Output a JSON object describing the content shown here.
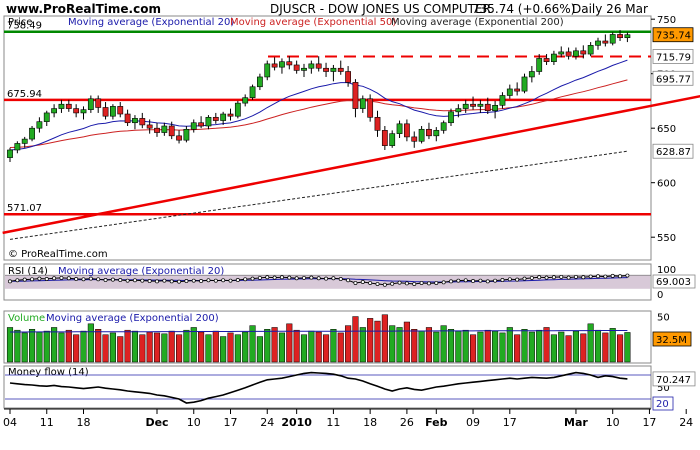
{
  "header": {
    "site": "www.ProRealTime.com",
    "title": "DJUSCR - DOW JONES US COMPUTER",
    "price_change": "735.74 (+0.66%)",
    "period": "Daily  26 Mar"
  },
  "watermark": "© ProRealTime.com",
  "colors": {
    "background": "#ffffff",
    "up": "#22aa22",
    "down": "#dd2222",
    "resistance": "#008800",
    "support": "#ee0000",
    "ema20": "#1a1aaa",
    "ema50": "#cc2222",
    "ema200": "#222222",
    "volume_ma": "#1a1aaa",
    "rsi_fill": "#d8c9d8",
    "panel_border": "#888888"
  },
  "chart_data": [
    {
      "type": "candlestick",
      "panel": "price",
      "legend": [
        {
          "label": "Price",
          "color": "#000000"
        },
        {
          "label": "Moving average (Exponential 20)",
          "color": "#1a1aaa"
        },
        {
          "label": "Moving average (Exponential 50)",
          "color": "#cc2222"
        },
        {
          "label": "Moving average (Exponential 200)",
          "color": "#222222"
        }
      ],
      "ylim": [
        530,
        752
      ],
      "y_ticks": [
        550,
        600,
        650,
        700,
        750
      ],
      "x_labels": [
        "04",
        "11",
        "18",
        "Dec",
        "10",
        "17",
        "24",
        "2010",
        "11",
        "18",
        "26",
        "Feb",
        "09",
        "17",
        "Mar",
        "10",
        "17",
        "24"
      ],
      "x_label_days": [
        0,
        5,
        10,
        20,
        25,
        30,
        35,
        39,
        44,
        49,
        54,
        58,
        63,
        68,
        77,
        82,
        87,
        92
      ],
      "x_bold_labels": [
        "Dec",
        "2010",
        "Feb",
        "Mar"
      ],
      "horizontal_lines": [
        {
          "value": 738.49,
          "label": "738.49",
          "style": "solid",
          "color": "#008800"
        },
        {
          "value": 715.79,
          "label": "715.79",
          "style": "dashed",
          "color": "#ee0000"
        },
        {
          "value": 675.94,
          "label": "675.94",
          "style": "solid",
          "color": "#ee0000"
        },
        {
          "value": 571.07,
          "label": "571.07",
          "style": "solid",
          "color": "#ee0000"
        }
      ],
      "trendline": {
        "from": [
          -1,
          554
        ],
        "to": [
          102,
          690
        ],
        "color": "#ee0000"
      },
      "right_labels": [
        {
          "value": 735.74,
          "text": "735.74",
          "box": "#ff9900"
        },
        {
          "value": 715.79,
          "text": "715.79",
          "box": "#ffffff"
        },
        {
          "value": 695.77,
          "text": "695.77",
          "box": "#ffffff"
        },
        {
          "value": 628.87,
          "text": "628.87",
          "box": "#ffffff"
        }
      ],
      "candles": [
        [
          623,
          632,
          619,
          630
        ],
        [
          630,
          638,
          627,
          636
        ],
        [
          636,
          642,
          632,
          640
        ],
        [
          640,
          652,
          638,
          650
        ],
        [
          650,
          660,
          646,
          656
        ],
        [
          656,
          666,
          652,
          664
        ],
        [
          664,
          672,
          660,
          668
        ],
        [
          668,
          676,
          664,
          672
        ],
        [
          672,
          676,
          665,
          668
        ],
        [
          668,
          672,
          660,
          664
        ],
        [
          664,
          670,
          658,
          667
        ],
        [
          667,
          680,
          664,
          677
        ],
        [
          677,
          680,
          664,
          669
        ],
        [
          669,
          674,
          658,
          661
        ],
        [
          661,
          672,
          658,
          670
        ],
        [
          670,
          674,
          660,
          663
        ],
        [
          663,
          667,
          652,
          655
        ],
        [
          655,
          662,
          649,
          659
        ],
        [
          659,
          664,
          650,
          653
        ],
        [
          653,
          658,
          645,
          650
        ],
        [
          650,
          655,
          642,
          646
        ],
        [
          646,
          655,
          643,
          652
        ],
        [
          652,
          656,
          640,
          643
        ],
        [
          643,
          648,
          636,
          639
        ],
        [
          639,
          652,
          637,
          649
        ],
        [
          649,
          658,
          646,
          655
        ],
        [
          655,
          661,
          650,
          652
        ],
        [
          652,
          662,
          649,
          660
        ],
        [
          660,
          664,
          654,
          657
        ],
        [
          657,
          665,
          653,
          663
        ],
        [
          663,
          668,
          657,
          661
        ],
        [
          661,
          675,
          659,
          673
        ],
        [
          673,
          681,
          670,
          678
        ],
        [
          678,
          690,
          676,
          688
        ],
        [
          688,
          700,
          685,
          697
        ],
        [
          697,
          712,
          694,
          709
        ],
        [
          709,
          715,
          703,
          706
        ],
        [
          706,
          714,
          700,
          711
        ],
        [
          711,
          716,
          704,
          708
        ],
        [
          708,
          712,
          700,
          703
        ],
        [
          703,
          709,
          697,
          705
        ],
        [
          705,
          712,
          700,
          709
        ],
        [
          709,
          716,
          702,
          705
        ],
        [
          705,
          710,
          697,
          702
        ],
        [
          702,
          708,
          693,
          705
        ],
        [
          705,
          712,
          699,
          702
        ],
        [
          702,
          707,
          688,
          692
        ],
        [
          692,
          695,
          660,
          668
        ],
        [
          668,
          680,
          664,
          677
        ],
        [
          677,
          681,
          656,
          660
        ],
        [
          660,
          666,
          642,
          648
        ],
        [
          648,
          652,
          630,
          634
        ],
        [
          634,
          648,
          632,
          645
        ],
        [
          645,
          657,
          641,
          654
        ],
        [
          654,
          658,
          638,
          642
        ],
        [
          642,
          647,
          632,
          638
        ],
        [
          638,
          652,
          636,
          649
        ],
        [
          649,
          655,
          640,
          643
        ],
        [
          643,
          651,
          638,
          648
        ],
        [
          648,
          657,
          645,
          655
        ],
        [
          655,
          668,
          652,
          665
        ],
        [
          665,
          672,
          660,
          668
        ],
        [
          668,
          676,
          664,
          672
        ],
        [
          672,
          679,
          667,
          670
        ],
        [
          670,
          676,
          664,
          672
        ],
        [
          672,
          678,
          663,
          666
        ],
        [
          666,
          675,
          659,
          671
        ],
        [
          671,
          683,
          668,
          680
        ],
        [
          680,
          690,
          677,
          686
        ],
        [
          686,
          692,
          680,
          684
        ],
        [
          684,
          700,
          682,
          697
        ],
        [
          697,
          707,
          692,
          702
        ],
        [
          702,
          718,
          699,
          714
        ],
        [
          714,
          718,
          708,
          711
        ],
        [
          711,
          721,
          708,
          718
        ],
        [
          718,
          725,
          715,
          720
        ],
        [
          720,
          724,
          713,
          716
        ],
        [
          716,
          724,
          713,
          721
        ],
        [
          721,
          726,
          714,
          718
        ],
        [
          718,
          729,
          716,
          726
        ],
        [
          726,
          733,
          722,
          730
        ],
        [
          730,
          736,
          725,
          728
        ],
        [
          728,
          738,
          726,
          736
        ],
        [
          736,
          740,
          730,
          733
        ],
        [
          733,
          738,
          729,
          735.74
        ]
      ],
      "ema20_end": 715.79,
      "ema50_end": 695.77,
      "ema200_end": 628.87
    },
    {
      "type": "line",
      "panel": "rsi",
      "legend": [
        {
          "label": "RSI (14)",
          "color": "#000000"
        },
        {
          "label": "Moving average (Exponential 20)",
          "color": "#1a1aaa"
        }
      ],
      "ylim": [
        0,
        100
      ],
      "y_ticks": [
        0,
        100
      ],
      "last_value": "69.003",
      "values": [
        52,
        55,
        57,
        58,
        60,
        59,
        61,
        62,
        61,
        59,
        58,
        60,
        58,
        56,
        57,
        56,
        54,
        55,
        54,
        53,
        52,
        54,
        52,
        51,
        53,
        54,
        53,
        55,
        54,
        55,
        54,
        56,
        58,
        60,
        62,
        64,
        63,
        64,
        63,
        61,
        62,
        63,
        61,
        60,
        61,
        59,
        55,
        47,
        50,
        47,
        44,
        42,
        45,
        48,
        46,
        44,
        47,
        46,
        47,
        49,
        52,
        54,
        55,
        53,
        54,
        52,
        54,
        56,
        58,
        57,
        60,
        62,
        64,
        63,
        64,
        65,
        63,
        65,
        64,
        66,
        67,
        66,
        68,
        67,
        69.003
      ]
    },
    {
      "type": "bar",
      "panel": "volume",
      "legend": [
        {
          "label": "Volume",
          "color": "#22aa22"
        },
        {
          "label": "Moving average (Exponential 200)",
          "color": "#1a1aaa"
        }
      ],
      "ylim": [
        0,
        55
      ],
      "y_ticks": [
        50
      ],
      "unit": "M",
      "last_value": "32.5M",
      "values": [
        38,
        35,
        32,
        36,
        33,
        34,
        38,
        32,
        35,
        30,
        34,
        42,
        36,
        30,
        32,
        28,
        35,
        34,
        30,
        33,
        32,
        31,
        34,
        30,
        35,
        38,
        33,
        30,
        34,
        28,
        32,
        30,
        33,
        40,
        28,
        36,
        38,
        32,
        42,
        35,
        30,
        34,
        33,
        30,
        36,
        32,
        40,
        50,
        38,
        48,
        45,
        52,
        40,
        38,
        44,
        36,
        34,
        38,
        33,
        40,
        36,
        34,
        35,
        30,
        33,
        35,
        34,
        32,
        38,
        30,
        36,
        33,
        35,
        38,
        30,
        33,
        29,
        34,
        31,
        42,
        35,
        32,
        37,
        30,
        32.5
      ]
    },
    {
      "type": "line",
      "panel": "money_flow",
      "legend": [
        {
          "label": "Money flow (14)",
          "color": "#000000"
        }
      ],
      "ylim": [
        0,
        100
      ],
      "y_ticks": [
        50
      ],
      "right_labels": [
        "70.247",
        "20"
      ],
      "values": [
        60,
        58,
        56,
        55,
        53,
        52,
        54,
        51,
        50,
        48,
        46,
        48,
        50,
        47,
        45,
        43,
        40,
        38,
        36,
        34,
        30,
        28,
        24,
        20,
        10,
        12,
        16,
        22,
        26,
        30,
        36,
        42,
        48,
        55,
        62,
        68,
        70,
        72,
        76,
        80,
        84,
        86,
        85,
        84,
        82,
        78,
        72,
        70,
        65,
        58,
        52,
        45,
        40,
        45,
        48,
        44,
        42,
        46,
        50,
        52,
        55,
        58,
        60,
        62,
        64,
        66,
        68,
        70,
        72,
        70,
        72,
        74,
        73,
        72,
        74,
        78,
        82,
        86,
        84,
        80,
        74,
        78,
        76,
        72,
        70.247
      ]
    }
  ]
}
